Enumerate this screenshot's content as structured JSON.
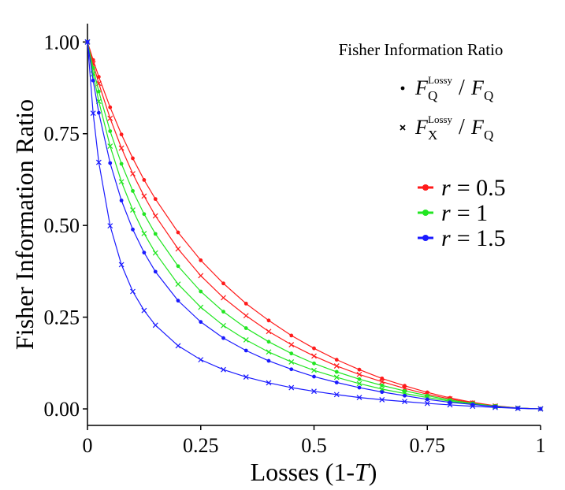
{
  "chart_data": {
    "type": "line",
    "x_label": {
      "before": "Losses (1-",
      "italic": "T",
      "after": ")"
    },
    "y_label": "Fisher Information Ratio",
    "x": [
      0,
      0.0125,
      0.025,
      0.05,
      0.075,
      0.1,
      0.125,
      0.15,
      0.2,
      0.25,
      0.3,
      0.35,
      0.4,
      0.45,
      0.5,
      0.55,
      0.6,
      0.65,
      0.7,
      0.75,
      0.8,
      0.85,
      0.9,
      0.95,
      1
    ],
    "series": [
      {
        "color": "#ff1a1a",
        "marker": "dot",
        "values": [
          1,
          0.951,
          0.905,
          0.822,
          0.748,
          0.683,
          0.624,
          0.572,
          0.481,
          0.405,
          0.342,
          0.287,
          0.241,
          0.2,
          0.165,
          0.134,
          0.107,
          0.083,
          0.063,
          0.045,
          0.03,
          0.0178,
          0.0084,
          0.0023,
          0
        ]
      },
      {
        "color": "#ff1a1a",
        "marker": "cross",
        "values": [
          1,
          0.941,
          0.887,
          0.792,
          0.711,
          0.641,
          0.58,
          0.526,
          0.436,
          0.363,
          0.303,
          0.254,
          0.211,
          0.175,
          0.144,
          0.117,
          0.094,
          0.074,
          0.056,
          0.04,
          0.027,
          0.016,
          0.0079,
          0.0022,
          0
        ]
      },
      {
        "color": "#22e622",
        "marker": "dot",
        "values": [
          1,
          0.929,
          0.865,
          0.757,
          0.668,
          0.594,
          0.531,
          0.477,
          0.389,
          0.32,
          0.265,
          0.22,
          0.183,
          0.151,
          0.124,
          0.101,
          0.081,
          0.064,
          0.049,
          0.036,
          0.024,
          0.015,
          0.0073,
          0.0021,
          0
        ]
      },
      {
        "color": "#22e622",
        "marker": "cross",
        "values": [
          1,
          0.913,
          0.838,
          0.716,
          0.619,
          0.542,
          0.478,
          0.425,
          0.34,
          0.277,
          0.227,
          0.188,
          0.155,
          0.128,
          0.105,
          0.086,
          0.069,
          0.054,
          0.042,
          0.031,
          0.021,
          0.013,
          0.0067,
          0.002,
          0
        ]
      },
      {
        "color": "#1a1aff",
        "marker": "dot",
        "values": [
          1,
          0.895,
          0.807,
          0.67,
          0.568,
          0.489,
          0.426,
          0.374,
          0.295,
          0.237,
          0.193,
          0.159,
          0.131,
          0.108,
          0.088,
          0.072,
          0.058,
          0.046,
          0.036,
          0.026,
          0.018,
          0.012,
          0.006,
          0.0019,
          0
        ]
      },
      {
        "color": "#1a1aff",
        "marker": "cross",
        "values": [
          1,
          0.806,
          0.672,
          0.499,
          0.393,
          0.32,
          0.268,
          0.228,
          0.172,
          0.134,
          0.107,
          0.087,
          0.071,
          0.058,
          0.048,
          0.039,
          0.031,
          0.025,
          0.02,
          0.015,
          0.011,
          0.0071,
          0.004,
          0.0014,
          0
        ]
      }
    ],
    "xlim": [
      0,
      1
    ],
    "ylim": [
      -0.045,
      1.05
    ],
    "xticks": [
      0,
      0.25,
      0.5,
      0.75,
      1
    ],
    "yticks": [
      {
        "value": 0,
        "label": "0.00"
      },
      {
        "value": 0.25,
        "label": "0.25"
      },
      {
        "value": 0.5,
        "label": "0.50"
      },
      {
        "value": 0.75,
        "label": "0.75"
      },
      {
        "value": 1,
        "label": "1.00"
      }
    ],
    "legend": {
      "position": "upper right",
      "title": "Fisher Information Ratio",
      "marker_entries": [
        {
          "marker": "dot",
          "numerator": {
            "base": "F",
            "sub": "Q",
            "sup": "Lossy"
          },
          "slash": "/",
          "denominator": {
            "base": "F",
            "sub": "Q"
          }
        },
        {
          "marker": "cross",
          "numerator": {
            "base": "F",
            "sub": "X",
            "sup": "Lossy"
          },
          "slash": "/",
          "denominator": {
            "base": "F",
            "sub": "Q"
          }
        }
      ],
      "color_entries": [
        {
          "color": "#ff1a1a",
          "symbol": "r",
          "text": "= 0.5"
        },
        {
          "color": "#22e622",
          "symbol": "r",
          "text": "= 1"
        },
        {
          "color": "#1a1aff",
          "symbol": "r",
          "text": "= 1.5"
        }
      ]
    }
  }
}
